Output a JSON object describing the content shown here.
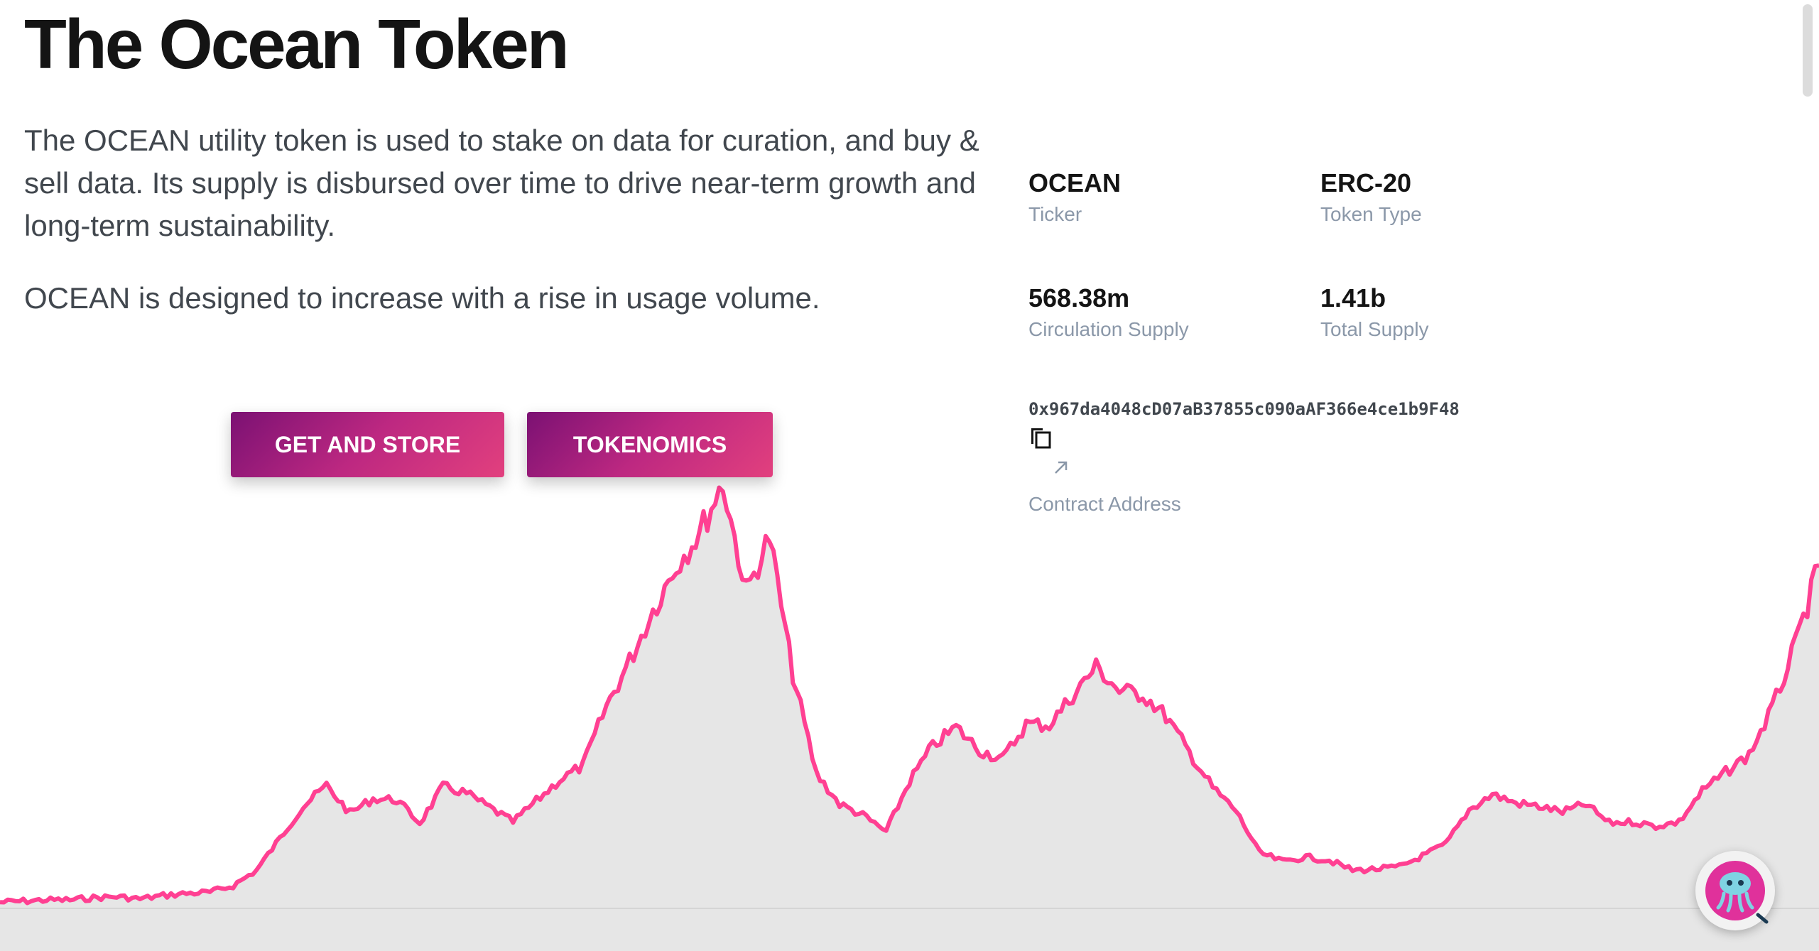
{
  "page": {
    "title": "The Ocean Token",
    "description": "The OCEAN utility token is used to stake on data for curation, and buy & sell data. Its supply is disbursed over time to drive near-term growth and long-term sustainability.",
    "description2": "OCEAN is designed to increase with a rise in usage volume."
  },
  "buttons": {
    "get_and_store": "GET AND STORE",
    "tokenomics": "TOKENOMICS"
  },
  "stats": {
    "ticker": {
      "value": "OCEAN",
      "label": "Ticker"
    },
    "token_type": {
      "value": "ERC-20",
      "label": "Token Type"
    },
    "circulation": {
      "value": "568.38m",
      "label": "Circulation Supply"
    },
    "total": {
      "value": "1.41b",
      "label": "Total Supply"
    }
  },
  "contract": {
    "address": "0x967da4048cD07aB37855c090aAF366e4ce1b9F48",
    "label": "Contract Address"
  },
  "icons": {
    "copy": "copy-icon",
    "external_link": "external-link-icon",
    "avatar": "jellyfish-avatar-icon"
  },
  "colors": {
    "accent": "#ff4092",
    "button_start": "#7b1173",
    "button_end": "#e2407e",
    "area_fill": "#e6e6e6",
    "label_gray": "#8b98a9"
  },
  "chart_data": {
    "type": "area",
    "values": [
      0.05,
      0.06,
      0.07,
      0.07,
      0.09,
      0.1,
      0.08,
      0.11,
      0.13,
      0.14,
      0.2,
      0.34,
      0.63,
      0.92,
      1.11,
      0.86,
      0.99,
      0.98,
      0.77,
      1.1,
      1.04,
      0.91,
      0.78,
      0.97,
      1.16,
      1.29,
      1.83,
      2.24,
      2.7,
      3.11,
      3.41,
      3.86,
      2.87,
      3.37,
      2.12,
      1.22,
      0.94,
      0.84,
      0.69,
      1.15,
      1.47,
      1.64,
      1.43,
      1.35,
      1.67,
      1.66,
      1.93,
      2.19,
      1.97,
      1.94,
      1.74,
      1.41,
      1.09,
      0.88,
      0.5,
      0.42,
      0.46,
      0.43,
      0.34,
      0.35,
      0.37,
      0.47,
      0.58,
      0.89,
      1.03,
      0.95,
      0.92,
      0.87,
      0.94,
      0.77,
      0.78,
      0.74,
      0.78,
      1.06,
      1.23,
      1.39,
      1.81,
      2.39,
      3.11
    ],
    "color": "#ff4092",
    "fill": "#e6e6e6"
  }
}
